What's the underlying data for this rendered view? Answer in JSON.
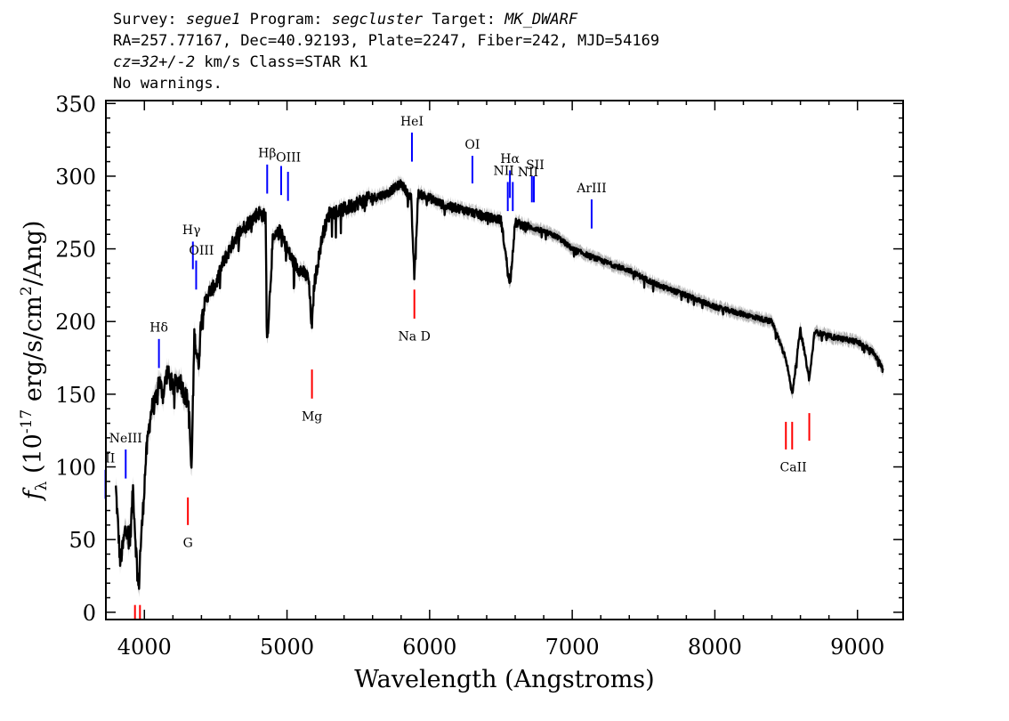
{
  "header": {
    "survey_label": "Survey:",
    "survey": "segue1",
    "program_label": "Program:",
    "program": "segcluster",
    "target_label": "Target:",
    "target": "MK_DWARF",
    "line2": "RA=257.77167, Dec=40.92193, Plate=2247, Fiber=242, MJD=54169",
    "cz": "cz=32+/-2",
    "cz_units_class": "km/s Class=STAR K1",
    "warnings": "No warnings."
  },
  "chart_data": {
    "type": "line",
    "xlabel": "Wavelength (Angstroms)",
    "ylabel": "f_λ (10^-17 erg/s/cm^2/Ang)",
    "xlim": [
      3730,
      9320
    ],
    "ylim": [
      -5,
      352
    ],
    "xticks": [
      4000,
      5000,
      6000,
      7000,
      8000,
      9000
    ],
    "yticks": [
      0,
      50,
      100,
      150,
      200,
      250,
      300,
      350
    ],
    "colors": {
      "spectrum": "#000000",
      "error_band": "#b4b4b4",
      "emission": "#0000ff",
      "absorption": "#ff0000"
    },
    "series": [
      {
        "x": [
          3800,
          3830,
          3850,
          3870,
          3900,
          3920,
          3940,
          3960,
          3970,
          3990,
          4010,
          4030,
          4050,
          4080,
          4100,
          4130,
          4160,
          4200,
          4250,
          4280,
          4310,
          4330,
          4350,
          4380,
          4400,
          4450,
          4500,
          4550,
          4600,
          4650,
          4700,
          4750,
          4800,
          4850,
          4861,
          4900,
          4950,
          5000,
          5050,
          5100,
          5150,
          5175,
          5190,
          5250,
          5300,
          5400,
          5500,
          5600,
          5700,
          5800,
          5870,
          5893,
          5920,
          6000,
          6100,
          6200,
          6300,
          6400,
          6500,
          6563,
          6600,
          6700,
          6800,
          6900,
          7000,
          7200,
          7400,
          7600,
          7800,
          8000,
          8200,
          8400,
          8498,
          8542,
          8600,
          8662,
          8700,
          8800,
          9000,
          9100,
          9180
        ],
        "y": [
          85,
          35,
          45,
          60,
          50,
          85,
          45,
          15,
          40,
          70,
          105,
          125,
          140,
          145,
          160,
          150,
          165,
          155,
          160,
          150,
          145,
          95,
          190,
          170,
          205,
          220,
          225,
          240,
          250,
          260,
          265,
          270,
          275,
          272,
          185,
          255,
          262,
          250,
          240,
          235,
          230,
          195,
          225,
          260,
          275,
          277,
          282,
          285,
          288,
          295,
          285,
          230,
          288,
          285,
          280,
          278,
          275,
          272,
          270,
          225,
          268,
          265,
          262,
          258,
          250,
          242,
          235,
          225,
          218,
          210,
          205,
          200,
          175,
          150,
          195,
          160,
          193,
          190,
          186,
          180,
          168
        ]
      }
    ],
    "lines": [
      {
        "label": "Hβ",
        "x": 4861,
        "y": [
          288,
          308
        ],
        "type": "emission"
      },
      {
        "label": "OIII",
        "x": 4959,
        "y": [
          287,
          307
        ],
        "type": "emission"
      },
      {
        "label": "OIII",
        "x": 5007,
        "y": [
          283,
          303
        ],
        "type": "emission"
      },
      {
        "label": "HeI",
        "x": 5876,
        "y": [
          310,
          330
        ],
        "type": "emission"
      },
      {
        "label": "OI",
        "x": 6300,
        "y": [
          295,
          314
        ],
        "type": "emission"
      },
      {
        "label": "NII",
        "x": 6548,
        "y": [
          276,
          296
        ],
        "type": "emission"
      },
      {
        "label": "Hα",
        "x": 6563,
        "y": [
          285,
          304
        ],
        "type": "emission"
      },
      {
        "label": "NII",
        "x": 6583,
        "y": [
          276,
          296
        ],
        "type": "emission"
      },
      {
        "label": "SII",
        "x": 6717,
        "y": [
          282,
          300
        ],
        "type": "emission"
      },
      {
        "label": "SII",
        "x": 6731,
        "y": [
          282,
          300
        ],
        "type": "emission"
      },
      {
        "label": "ArIII",
        "x": 7136,
        "y": [
          264,
          284
        ],
        "type": "emission"
      },
      {
        "label": "Hγ",
        "x": 4340,
        "y": [
          236,
          255
        ],
        "type": "emission"
      },
      {
        "label": "OIII",
        "x": 4363,
        "y": [
          222,
          242
        ],
        "type": "emission"
      },
      {
        "label": "Hδ",
        "x": 4102,
        "y": [
          168,
          188
        ],
        "type": "emission"
      },
      {
        "label": "NeIII",
        "x": 3869,
        "y": [
          92,
          112
        ],
        "type": "emission"
      },
      {
        "label": "OII",
        "x": 3727,
        "y": [
          78,
          98
        ],
        "type": "emission"
      },
      {
        "label": "Na D",
        "x": 5893,
        "y": [
          202,
          222
        ],
        "type": "absorption"
      },
      {
        "label": "Mg",
        "x": 5175,
        "y": [
          147,
          167
        ],
        "type": "absorption"
      },
      {
        "label": "G",
        "x": 4305,
        "y": [
          60,
          79
        ],
        "type": "absorption"
      },
      {
        "label": "CaII",
        "x": 8498,
        "y": [
          112,
          131
        ],
        "type": "absorption"
      },
      {
        "label": "CaII",
        "x": 8542,
        "y": [
          112,
          131
        ],
        "type": "absorption"
      },
      {
        "label": "CaII",
        "x": 8662,
        "y": [
          118,
          137
        ],
        "type": "absorption"
      },
      {
        "label": "",
        "x": 3934,
        "y": [
          -5,
          5
        ],
        "type": "absorption"
      },
      {
        "label": "",
        "x": 3969,
        "y": [
          -5,
          5
        ],
        "type": "absorption"
      }
    ],
    "labels": [
      {
        "text": "Hβ",
        "x": 4861,
        "y": 313
      },
      {
        "text": "OIII",
        "x": 5010,
        "y": 310
      },
      {
        "text": "HeI",
        "x": 5876,
        "y": 335
      },
      {
        "text": "OI",
        "x": 6300,
        "y": 319
      },
      {
        "text": "NII",
        "x": 6520,
        "y": 301
      },
      {
        "text": "Hα",
        "x": 6563,
        "y": 309
      },
      {
        "text": "NII",
        "x": 6690,
        "y": 300
      },
      {
        "text": "SII",
        "x": 6740,
        "y": 305
      },
      {
        "text": "ArIII",
        "x": 7136,
        "y": 289
      },
      {
        "text": "Hγ",
        "x": 4330,
        "y": 260
      },
      {
        "text": "OIII",
        "x": 4400,
        "y": 246
      },
      {
        "text": "Hδ",
        "x": 4102,
        "y": 193
      },
      {
        "text": "NeIII",
        "x": 3869,
        "y": 117
      },
      {
        "text": "II",
        "x": 3760,
        "y": 103
      },
      {
        "text": "Na D",
        "x": 5893,
        "y": 187
      },
      {
        "text": "Mg",
        "x": 5175,
        "y": 132
      },
      {
        "text": "G",
        "x": 4305,
        "y": 45
      },
      {
        "text": "CaII",
        "x": 8550,
        "y": 97
      }
    ]
  }
}
